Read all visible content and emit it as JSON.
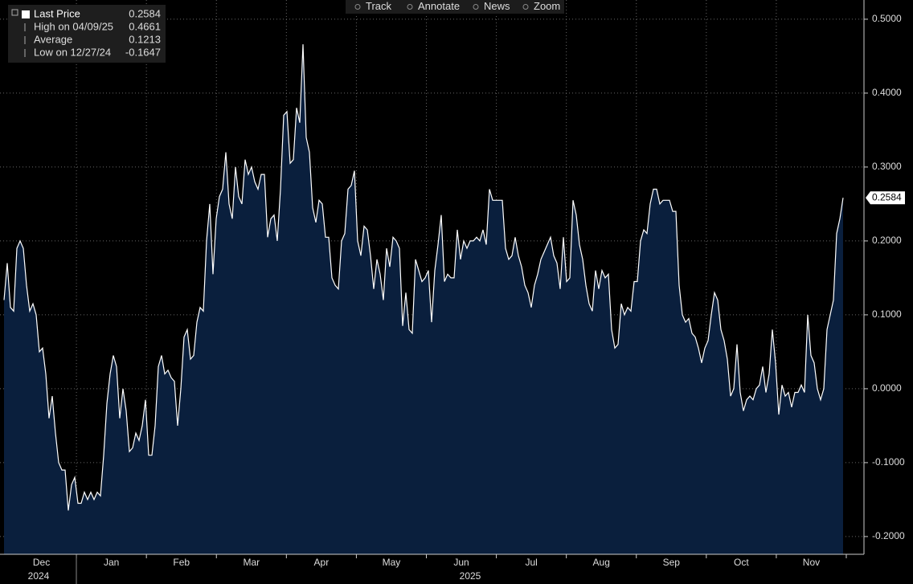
{
  "chart_data": {
    "type": "area",
    "toolbar": [
      "Track",
      "Annotate",
      "News",
      "Zoom"
    ],
    "legend": [
      {
        "label": "Last Price",
        "value": 0.2584
      },
      {
        "label": "High on 04/09/25",
        "value": 0.4661
      },
      {
        "label": "Average",
        "value": 0.1213
      },
      {
        "label": "Low on 12/27/24",
        "value": -0.1647
      }
    ],
    "months": [
      "Dec",
      "Jan",
      "Feb",
      "Mar",
      "Apr",
      "May",
      "Jun",
      "Jul",
      "Aug",
      "Sep",
      "Oct",
      "Nov"
    ],
    "years": [
      "2024",
      "2025"
    ],
    "series": [
      {
        "name": "Last Price",
        "color": "#ffffff",
        "fill": "#0a1f3d",
        "values": [
          0.12,
          0.17,
          0.11,
          0.105,
          0.19,
          0.2,
          0.19,
          0.14,
          0.105,
          0.115,
          0.1,
          0.05,
          0.055,
          0.02,
          -0.04,
          -0.01,
          -0.06,
          -0.1,
          -0.11,
          -0.11,
          -0.1647,
          -0.13,
          -0.12,
          -0.155,
          -0.155,
          -0.14,
          -0.15,
          -0.14,
          -0.15,
          -0.14,
          -0.145,
          -0.09,
          -0.02,
          0.02,
          0.045,
          0.03,
          -0.04,
          0.0,
          -0.03,
          -0.085,
          -0.08,
          -0.06,
          -0.07,
          -0.05,
          -0.015,
          -0.09,
          -0.09,
          -0.05,
          0.03,
          0.045,
          0.02,
          0.025,
          0.015,
          0.01,
          -0.05,
          0.0,
          0.07,
          0.08,
          0.04,
          0.045,
          0.09,
          0.11,
          0.105,
          0.2,
          0.25,
          0.155,
          0.23,
          0.26,
          0.27,
          0.32,
          0.25,
          0.23,
          0.3,
          0.26,
          0.25,
          0.31,
          0.29,
          0.3,
          0.28,
          0.27,
          0.29,
          0.29,
          0.205,
          0.23,
          0.235,
          0.2,
          0.27,
          0.37,
          0.375,
          0.305,
          0.31,
          0.38,
          0.36,
          0.4661,
          0.34,
          0.32,
          0.245,
          0.225,
          0.255,
          0.25,
          0.205,
          0.205,
          0.15,
          0.14,
          0.135,
          0.2,
          0.21,
          0.27,
          0.275,
          0.295,
          0.2,
          0.18,
          0.22,
          0.215,
          0.18,
          0.135,
          0.175,
          0.155,
          0.12,
          0.19,
          0.165,
          0.205,
          0.2,
          0.19,
          0.085,
          0.13,
          0.08,
          0.075,
          0.175,
          0.16,
          0.145,
          0.15,
          0.16,
          0.09,
          0.16,
          0.195,
          0.235,
          0.145,
          0.155,
          0.15,
          0.15,
          0.215,
          0.175,
          0.2,
          0.19,
          0.2,
          0.2,
          0.205,
          0.2,
          0.215,
          0.195,
          0.27,
          0.255,
          0.255,
          0.255,
          0.255,
          0.19,
          0.175,
          0.18,
          0.205,
          0.18,
          0.165,
          0.14,
          0.13,
          0.11,
          0.14,
          0.155,
          0.175,
          0.185,
          0.195,
          0.205,
          0.18,
          0.17,
          0.135,
          0.205,
          0.145,
          0.15,
          0.255,
          0.235,
          0.195,
          0.175,
          0.14,
          0.115,
          0.105,
          0.16,
          0.135,
          0.16,
          0.15,
          0.155,
          0.08,
          0.055,
          0.06,
          0.115,
          0.1,
          0.11,
          0.105,
          0.145,
          0.145,
          0.2,
          0.215,
          0.21,
          0.25,
          0.27,
          0.27,
          0.25,
          0.255,
          0.255,
          0.255,
          0.24,
          0.24,
          0.14,
          0.1,
          0.09,
          0.095,
          0.075,
          0.07,
          0.055,
          0.035,
          0.055,
          0.065,
          0.1,
          0.13,
          0.12,
          0.08,
          0.065,
          0.04,
          -0.01,
          0.0,
          0.06,
          -0.005,
          -0.03,
          -0.015,
          -0.01,
          -0.015,
          0.0,
          0.005,
          0.03,
          -0.005,
          0.02,
          0.08,
          0.035,
          -0.035,
          0.005,
          -0.01,
          -0.005,
          -0.025,
          -0.005,
          -0.005,
          0.005,
          -0.005,
          0.1,
          0.045,
          0.035,
          0.0,
          -0.015,
          0.0,
          0.08,
          0.1,
          0.12,
          0.21,
          0.23,
          0.2584
        ]
      }
    ],
    "ylim": [
      -0.224,
      0.526
    ],
    "yticks": [
      {
        "value": 0.5,
        "label": "0.5000"
      },
      {
        "value": 0.4,
        "label": "0.4000"
      },
      {
        "value": 0.3,
        "label": "0.3000"
      },
      {
        "value": 0.2,
        "label": "0.2000"
      },
      {
        "value": 0.1,
        "label": "0.1000"
      },
      {
        "value": 0,
        "label": "0.0000"
      },
      {
        "value": -0.1,
        "label": "-0.1000"
      },
      {
        "value": -0.2,
        "label": "-0.2000"
      }
    ],
    "grid": true
  }
}
